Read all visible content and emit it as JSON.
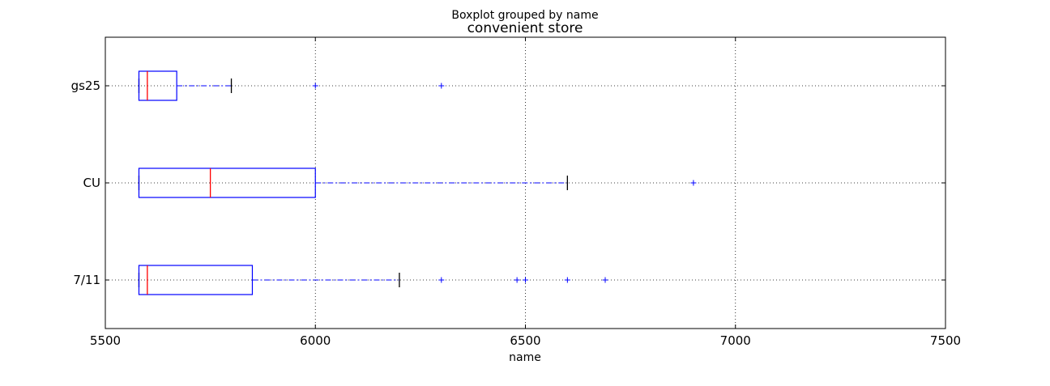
{
  "chart_data": {
    "type": "boxplot",
    "suptitle": "Boxplot grouped by name",
    "title": "convenient store",
    "xlabel": "name",
    "ylabel": "",
    "xlim": [
      5500,
      7500
    ],
    "xticks": [
      5500,
      6000,
      6500,
      7000,
      7500
    ],
    "orientation": "horizontal",
    "grid": true,
    "colors": {
      "box": "#0000ff",
      "median": "#ff0000",
      "whisker": "#0000ff",
      "cap": "#000000",
      "flier": "#0000ff",
      "grid": "#000000"
    },
    "categories": [
      "7/11",
      "CU",
      "gs25"
    ],
    "boxes": [
      {
        "name": "7/11",
        "whislo": 5580,
        "q1": 5580,
        "med": 5600,
        "q3": 5850,
        "whishi": 6200,
        "fliers": [
          6300,
          6480,
          6500,
          6600,
          6690
        ]
      },
      {
        "name": "CU",
        "whislo": 5580,
        "q1": 5580,
        "med": 5750,
        "q3": 6000,
        "whishi": 6600,
        "fliers": [
          6900
        ]
      },
      {
        "name": "gs25",
        "whislo": 5580,
        "q1": 5580,
        "med": 5600,
        "q3": 5670,
        "whishi": 5800,
        "fliers": [
          6000,
          6300
        ]
      }
    ]
  }
}
